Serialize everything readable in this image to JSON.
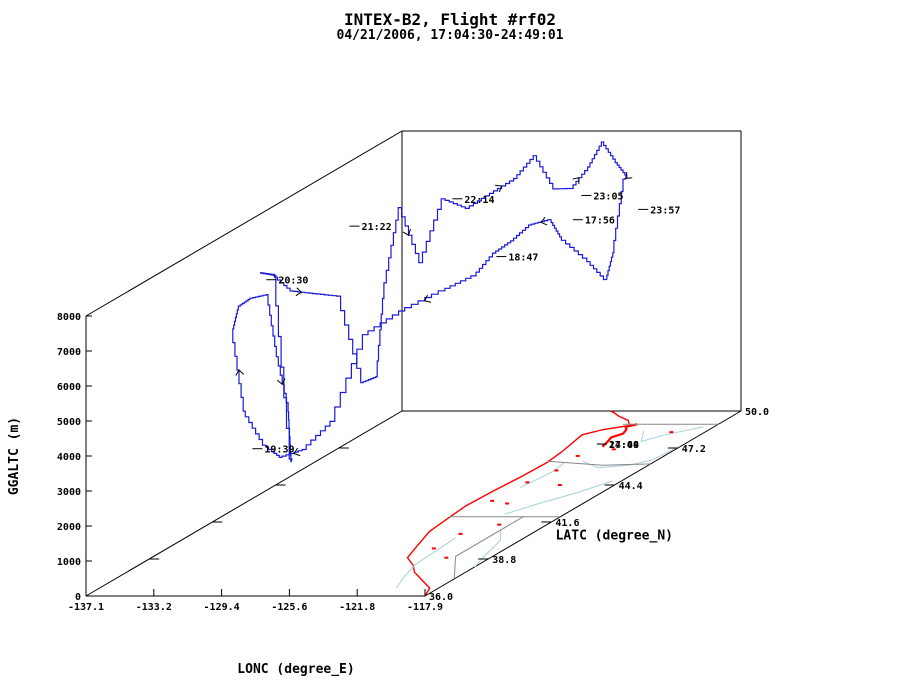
{
  "chart_data": {
    "type": "line",
    "title": "INTEX-B2, Flight #rf02",
    "subtitle": "04/21/2006, 17:04:30-24:49:01",
    "xlabel": "LONC (degree_E)",
    "ylabel": "LATC (degree_N)",
    "zlabel": "GGALTC (m)",
    "xlim": [
      -137.1,
      -117.9
    ],
    "ylim": [
      36.0,
      50.0
    ],
    "zlim": [
      0,
      8000
    ],
    "x_ticks": [
      "-137.1",
      "-133.2",
      "-129.4",
      "-125.6",
      "-121.8",
      "-117.9"
    ],
    "y_ticks": [
      "36.0",
      "38.8",
      "41.6",
      "44.4",
      "47.2",
      "50.0"
    ],
    "z_ticks": [
      "0",
      "1000",
      "2000",
      "3000",
      "4000",
      "5000",
      "6000",
      "7000",
      "8000"
    ],
    "grid": false,
    "legend": "none",
    "colors": {
      "track": "#1a1adc",
      "coast": "#ff0000",
      "rivers": "#a8d0dc",
      "borders": "#888888",
      "axes": "#000000"
    },
    "time_labels": [
      {
        "text": "17:56",
        "lon": -122.0,
        "lat": 46.2,
        "alt": 6900
      },
      {
        "text": "18:47",
        "lon": -124.8,
        "lat": 45.0,
        "alt": 6300
      },
      {
        "text": "19:39",
        "lon": -131.2,
        "lat": 39.2,
        "alt": 3000
      },
      {
        "text": "20:30",
        "lon": -132.2,
        "lat": 40.6,
        "alt": 7300
      },
      {
        "text": "21:22",
        "lon": -130.3,
        "lat": 42.8,
        "alt": 8000
      },
      {
        "text": "22:14",
        "lon": -127.8,
        "lat": 45.4,
        "alt": 7800
      },
      {
        "text": "23:05",
        "lon": -124.2,
        "lat": 48.3,
        "alt": 6800
      },
      {
        "text": "23:57",
        "lon": -122.0,
        "lat": 49.1,
        "alt": 6100
      },
      {
        "text": "17:04",
        "lon": -122.3,
        "lat": 47.5,
        "alt": 0
      },
      {
        "text": "24:49",
        "lon": -122.3,
        "lat": 47.5,
        "alt": 0
      }
    ],
    "series": [
      {
        "lon": [
          -122.3,
          -122.8,
          -123.6,
          -123.8,
          -124.4,
          -124.9,
          -125.4,
          -126.0,
          -127.0,
          -128.0,
          -128.8,
          -129.4,
          -130.0,
          -130.6,
          -131.0,
          -131.4,
          -131.6,
          -131.8,
          -131.9,
          -132.0,
          -132.2,
          -132.3,
          -132.4,
          -132.6,
          -133.0,
          -133.1,
          -133.0,
          -132.7,
          -132.2,
          -131.6,
          -131.0,
          -130.4,
          -130.2,
          -129.9,
          -129.5,
          -129.0,
          -128.4,
          -127.8,
          -127.2,
          -126.6,
          -126.0,
          -125.4,
          -124.8,
          -124.4,
          -124.0,
          -123.6,
          -123.2,
          -122.8,
          -122.3
        ],
        "lat": [
          47.5,
          47.0,
          46.5,
          46.2,
          45.8,
          45.4,
          45.0,
          44.6,
          44.0,
          43.0,
          42.0,
          41.0,
          40.2,
          39.6,
          39.2,
          38.6,
          38.2,
          38.6,
          39.2,
          40.0,
          40.6,
          41.2,
          41.4,
          41.6,
          41.2,
          40.6,
          41.0,
          41.6,
          42.2,
          42.8,
          43.4,
          43.6,
          43.8,
          44.2,
          44.8,
          45.4,
          46.0,
          46.6,
          47.2,
          47.6,
          48.0,
          48.3,
          48.6,
          48.9,
          49.2,
          49.4,
          49.0,
          48.2,
          47.5
        ],
        "alt": [
          4700,
          5500,
          6300,
          6900,
          6900,
          6600,
          6400,
          5900,
          5700,
          5500,
          5200,
          3100,
          2600,
          2600,
          3100,
          4300,
          6800,
          7300,
          7300,
          7100,
          5100,
          3300,
          1800,
          1800,
          7200,
          7500,
          7300,
          6600,
          6300,
          6000,
          3300,
          3400,
          6000,
          8000,
          6200,
          7800,
          7300,
          7500,
          7700,
          8200,
          7100,
          7000,
          7500,
          8100,
          7400,
          6900,
          7000,
          5200,
          4700
        ]
      }
    ]
  }
}
